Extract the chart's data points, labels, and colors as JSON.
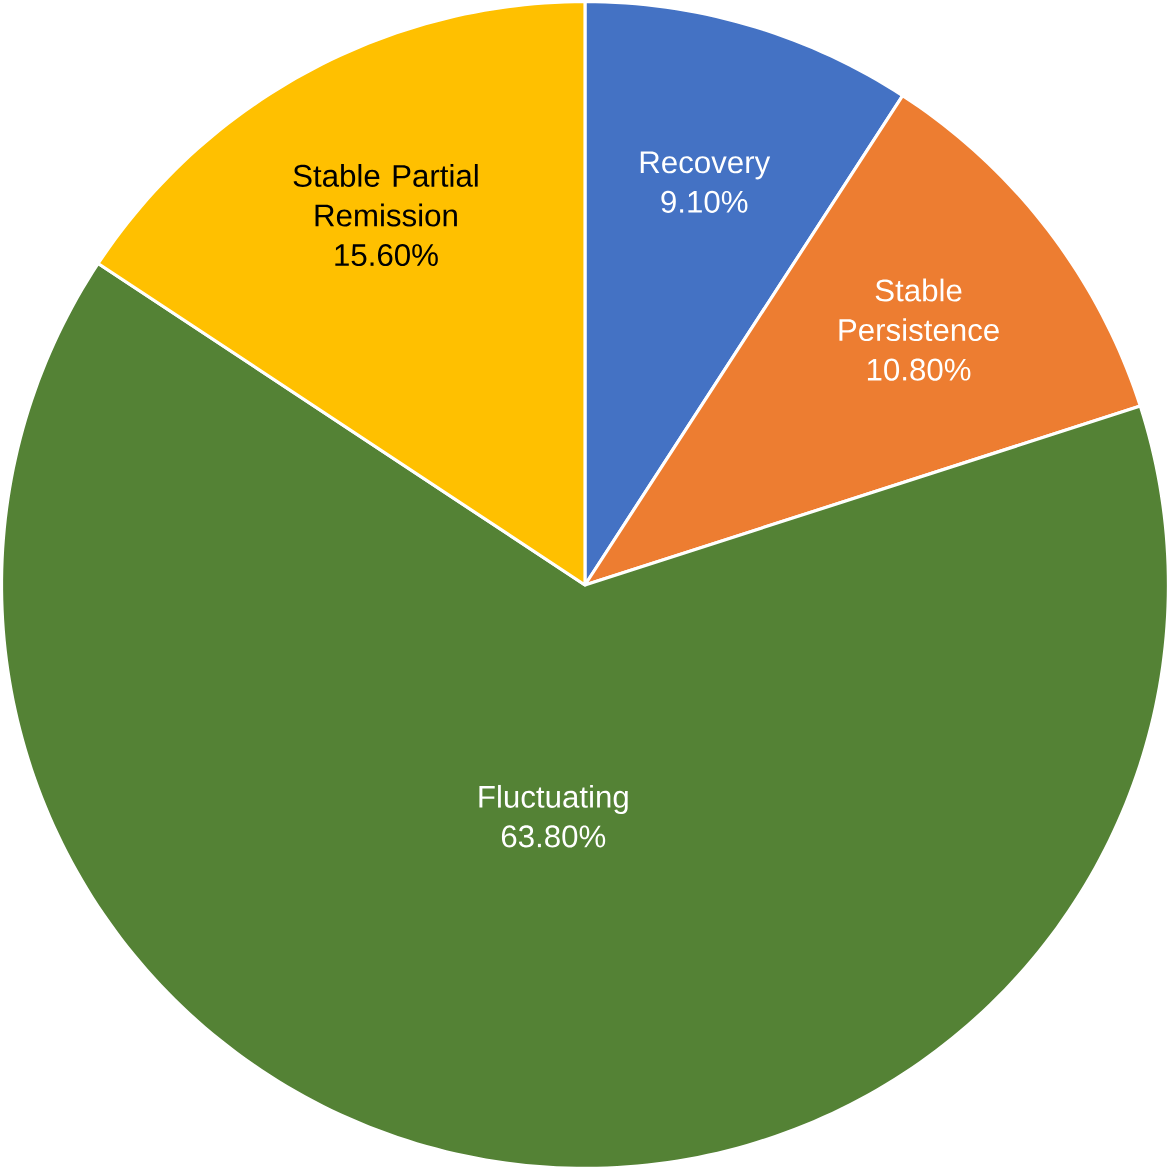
{
  "chart_data": {
    "type": "pie",
    "categories": [
      "Recovery",
      "Stable Persistence",
      "Fluctuating",
      "Stable Partial Remission"
    ],
    "values": [
      9.1,
      10.8,
      63.8,
      15.6
    ],
    "colors": [
      "#4472c4",
      "#ed7d31",
      "#548235",
      "#ffc000"
    ],
    "value_labels": [
      "9.10%",
      "10.80%",
      "63.80%",
      "15.60%"
    ]
  }
}
